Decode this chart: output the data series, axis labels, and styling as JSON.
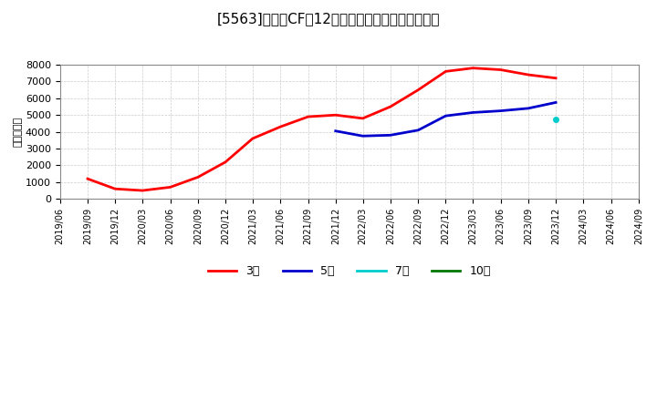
{
  "title": "[5563]　営業CFの12か月移動合計の平均値の推移",
  "ylabel": "（百万円）",
  "background_color": "#ffffff",
  "plot_bg_color": "#ffffff",
  "grid_color": "#cccccc",
  "ylim": [
    0,
    8000
  ],
  "yticks": [
    0,
    1000,
    2000,
    3000,
    4000,
    5000,
    6000,
    7000,
    8000
  ],
  "series": {
    "3year": {
      "color": "#ff0000",
      "label": "3年",
      "dates": [
        "2019/09",
        "2019/12",
        "2020/03",
        "2020/06",
        "2020/09",
        "2020/12",
        "2021/03",
        "2021/06",
        "2021/09",
        "2021/12",
        "2022/03",
        "2022/06",
        "2022/09",
        "2022/12",
        "2023/03",
        "2023/06",
        "2023/09",
        "2023/12"
      ],
      "values": [
        1200,
        600,
        500,
        700,
        1300,
        2200,
        3600,
        4300,
        4900,
        5000,
        4800,
        5500,
        6500,
        7600,
        7800,
        7700,
        7400,
        7200
      ]
    },
    "5year": {
      "color": "#0000cc",
      "label": "5年",
      "dates": [
        "2021/12",
        "2022/03",
        "2022/06",
        "2022/09",
        "2022/12",
        "2023/03",
        "2023/06",
        "2023/09",
        "2023/12"
      ],
      "values": [
        4050,
        3750,
        3800,
        4100,
        4950,
        5150,
        5250,
        5400,
        5750
      ]
    },
    "7year": {
      "color": "#00cccc",
      "label": "7年",
      "dates": [
        "2023/12"
      ],
      "values": [
        4750
      ]
    },
    "10year": {
      "color": "#007700",
      "label": "10年",
      "dates": [],
      "values": []
    }
  },
  "xaxis_start": "2019/06",
  "xaxis_end": "2024/09",
  "legend_labels": [
    "3年",
    "5年",
    "7年",
    "10年"
  ],
  "legend_colors": [
    "#ff0000",
    "#0000cc",
    "#00cccc",
    "#007700"
  ]
}
